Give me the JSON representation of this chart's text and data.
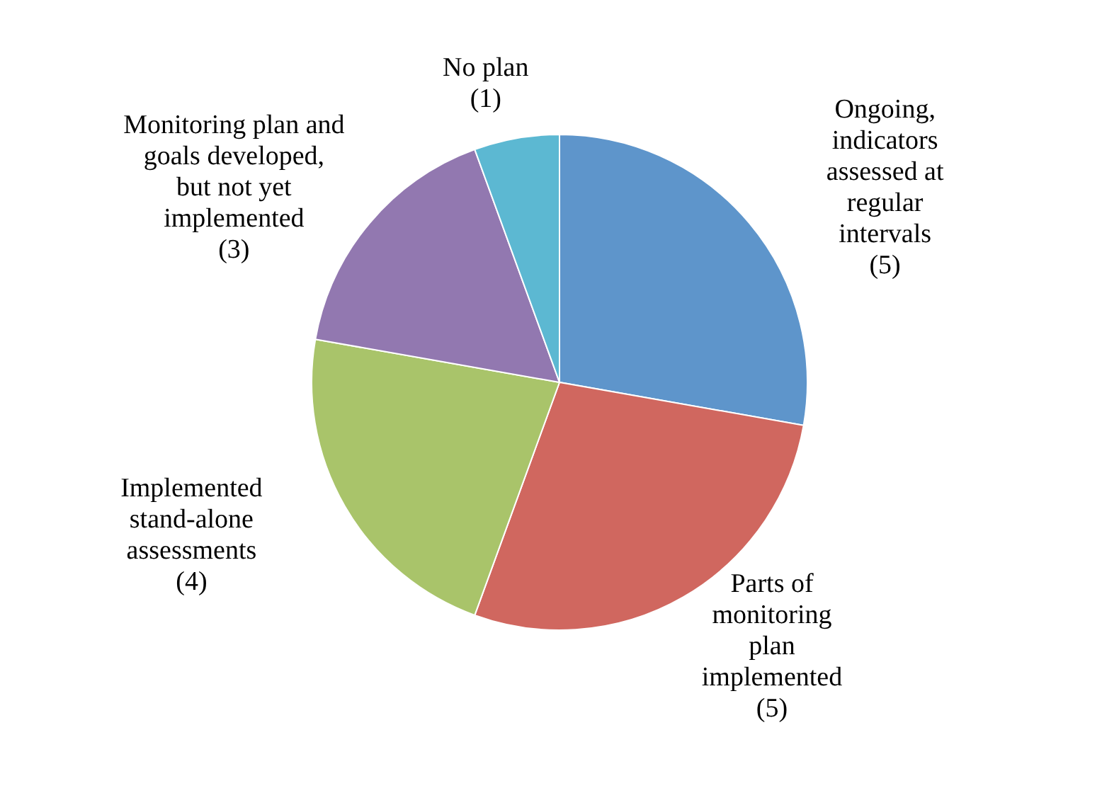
{
  "chart_data": {
    "type": "pie",
    "categories": [
      "Ongoing, indicators assessed at regular intervals",
      "Parts of monitoring plan implemented",
      "Implemented stand-alone assessments",
      "Monitoring plan and goals developed, but not yet implemented",
      "No plan"
    ],
    "values": [
      5,
      5,
      4,
      3,
      1
    ],
    "value_labels": [
      "(5)",
      "(5)",
      "(4)",
      "(3)",
      "(1)"
    ],
    "colors": [
      "#5e95cb",
      "#d0675f",
      "#a9c46a",
      "#9278b0",
      "#5cb8d2"
    ]
  }
}
